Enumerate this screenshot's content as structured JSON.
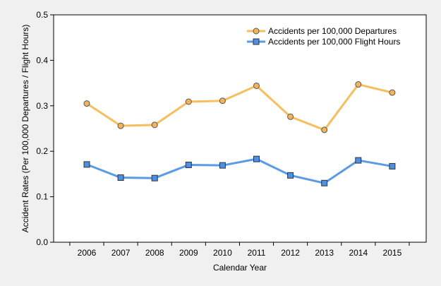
{
  "chart_data": {
    "type": "line",
    "title": "",
    "xlabel": "Calendar Year",
    "ylabel": "Accident Rates (Per 100,000 Departures / Flight Hours)",
    "categories": [
      "2006",
      "2007",
      "2008",
      "2009",
      "2010",
      "2011",
      "2012",
      "2013",
      "2014",
      "2015"
    ],
    "ylim": [
      0,
      0.5
    ],
    "yticks": [
      "0.0",
      "0.1",
      "0.2",
      "0.3",
      "0.4",
      "0.5"
    ],
    "grid": false,
    "legend_position": "top-right",
    "series": [
      {
        "name": "Accidents per 100,000 Departures",
        "color": "#f6be5e",
        "marker_fill": "#f2b45a",
        "marker": "circle",
        "values": [
          0.305,
          0.256,
          0.258,
          0.309,
          0.311,
          0.344,
          0.276,
          0.247,
          0.347,
          0.329
        ]
      },
      {
        "name": "Accidents per 100,000 Flight Hours",
        "color": "#5a9be6",
        "marker_fill": "#4f8fe0",
        "marker": "square",
        "values": [
          0.171,
          0.142,
          0.141,
          0.17,
          0.169,
          0.183,
          0.147,
          0.13,
          0.18,
          0.167
        ]
      }
    ]
  }
}
